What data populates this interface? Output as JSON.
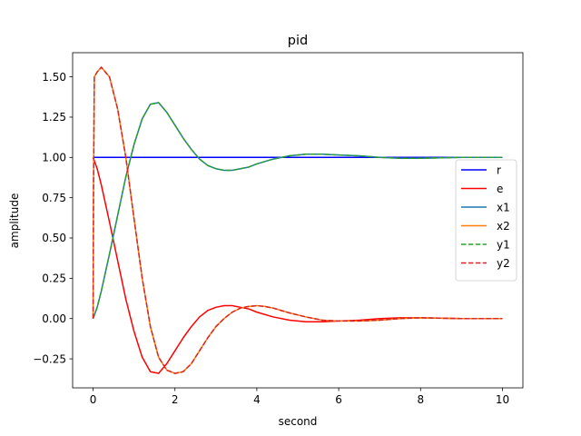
{
  "chart_data": {
    "type": "line",
    "title": "pid",
    "xlabel": "second",
    "ylabel": "amplitude",
    "xlim": [
      -0.5,
      10.5
    ],
    "ylim": [
      -0.43,
      1.65
    ],
    "xticks": [
      0,
      2,
      4,
      6,
      8,
      10
    ],
    "xtick_labels": [
      "0",
      "2",
      "4",
      "6",
      "8",
      "10"
    ],
    "yticks": [
      -0.25,
      0,
      0.25,
      0.5,
      0.75,
      1.0,
      1.25,
      1.5
    ],
    "ytick_labels": [
      "−0.25",
      "0.00",
      "0.25",
      "0.50",
      "0.75",
      "1.00",
      "1.25",
      "1.50"
    ],
    "grid": false,
    "legend_position": "center-right",
    "series": [
      {
        "name": "r",
        "color": "#0000ff",
        "style": "solid",
        "x": [
          0,
          0.5,
          1,
          2,
          3,
          4,
          5,
          6,
          7,
          8,
          9,
          10
        ],
        "y": [
          1,
          1,
          1,
          1,
          1,
          1,
          1,
          1,
          1,
          1,
          1,
          1
        ]
      },
      {
        "name": "e",
        "color": "#ff0000",
        "style": "solid",
        "x": [
          0,
          0.1,
          0.2,
          0.4,
          0.6,
          0.8,
          1.0,
          1.2,
          1.4,
          1.6,
          1.8,
          2.0,
          2.2,
          2.4,
          2.6,
          2.8,
          3.0,
          3.2,
          3.4,
          3.6,
          3.8,
          4.0,
          4.4,
          4.8,
          5.2,
          5.6,
          6.0,
          6.5,
          7.0,
          7.5,
          8.0,
          9.0,
          10.0
        ],
        "y": [
          1.0,
          0.93,
          0.83,
          0.6,
          0.36,
          0.12,
          -0.08,
          -0.24,
          -0.33,
          -0.34,
          -0.28,
          -0.2,
          -0.12,
          -0.05,
          0.01,
          0.05,
          0.07,
          0.08,
          0.08,
          0.07,
          0.06,
          0.04,
          0.01,
          -0.01,
          -0.02,
          -0.02,
          -0.015,
          -0.01,
          0.0,
          0.005,
          0.005,
          0.0,
          0.0
        ]
      },
      {
        "name": "x1",
        "color": "#1f77b4",
        "style": "solid",
        "x": [
          0,
          0.1,
          0.2,
          0.4,
          0.6,
          0.8,
          1.0,
          1.2,
          1.4,
          1.6,
          1.8,
          2.0,
          2.2,
          2.4,
          2.6,
          2.8,
          3.0,
          3.2,
          3.4,
          3.6,
          3.8,
          4.0,
          4.4,
          4.8,
          5.2,
          5.6,
          6.0,
          6.5,
          7.0,
          7.5,
          8.0,
          9.0,
          10.0
        ],
        "y": [
          0.0,
          0.07,
          0.17,
          0.4,
          0.64,
          0.88,
          1.08,
          1.24,
          1.33,
          1.34,
          1.28,
          1.2,
          1.12,
          1.05,
          0.99,
          0.95,
          0.93,
          0.92,
          0.92,
          0.93,
          0.94,
          0.96,
          0.99,
          1.01,
          1.02,
          1.02,
          1.015,
          1.01,
          1.0,
          0.995,
          0.995,
          1.0,
          1.0
        ]
      },
      {
        "name": "x2",
        "color": "#ff7f0e",
        "style": "solid",
        "x": [
          0,
          0.01,
          0.03,
          0.1,
          0.2,
          0.4,
          0.6,
          0.8,
          1.0,
          1.2,
          1.4,
          1.6,
          1.8,
          2.0,
          2.2,
          2.4,
          2.6,
          2.8,
          3.0,
          3.2,
          3.4,
          3.6,
          3.8,
          4.0,
          4.2,
          4.4,
          4.6,
          4.8,
          5.2,
          5.6,
          6.0,
          6.5,
          7.0,
          7.5,
          8.0,
          9.0,
          10.0
        ],
        "y": [
          0.0,
          0.8,
          1.5,
          1.53,
          1.56,
          1.5,
          1.3,
          1.0,
          0.62,
          0.25,
          -0.05,
          -0.24,
          -0.32,
          -0.34,
          -0.33,
          -0.28,
          -0.2,
          -0.12,
          -0.05,
          0.0,
          0.04,
          0.065,
          0.075,
          0.08,
          0.075,
          0.065,
          0.05,
          0.035,
          0.01,
          -0.01,
          -0.015,
          -0.015,
          -0.01,
          0.0,
          0.005,
          0.0,
          0.0
        ]
      },
      {
        "name": "y1",
        "color": "#2ca02c",
        "style": "dashed",
        "x": [
          0,
          0.1,
          0.2,
          0.4,
          0.6,
          0.8,
          1.0,
          1.2,
          1.4,
          1.6,
          1.8,
          2.0,
          2.2,
          2.4,
          2.6,
          2.8,
          3.0,
          3.2,
          3.4,
          3.6,
          3.8,
          4.0,
          4.4,
          4.8,
          5.2,
          5.6,
          6.0,
          6.5,
          7.0,
          7.5,
          8.0,
          9.0,
          10.0
        ],
        "y": [
          0.0,
          0.07,
          0.17,
          0.4,
          0.64,
          0.88,
          1.08,
          1.24,
          1.33,
          1.34,
          1.28,
          1.2,
          1.12,
          1.05,
          0.99,
          0.95,
          0.93,
          0.92,
          0.92,
          0.93,
          0.94,
          0.96,
          0.99,
          1.01,
          1.02,
          1.02,
          1.015,
          1.01,
          1.0,
          0.995,
          0.995,
          1.0,
          1.0
        ]
      },
      {
        "name": "y2",
        "color": "#d62728",
        "style": "dashed",
        "x": [
          0,
          0.01,
          0.03,
          0.1,
          0.2,
          0.4,
          0.6,
          0.8,
          1.0,
          1.2,
          1.4,
          1.6,
          1.8,
          2.0,
          2.2,
          2.4,
          2.6,
          2.8,
          3.0,
          3.2,
          3.4,
          3.6,
          3.8,
          4.0,
          4.2,
          4.4,
          4.6,
          4.8,
          5.2,
          5.6,
          6.0,
          6.5,
          7.0,
          7.5,
          8.0,
          9.0,
          10.0
        ],
        "y": [
          0.0,
          0.8,
          1.5,
          1.53,
          1.56,
          1.5,
          1.3,
          1.0,
          0.62,
          0.25,
          -0.05,
          -0.24,
          -0.32,
          -0.34,
          -0.33,
          -0.28,
          -0.2,
          -0.12,
          -0.05,
          0.0,
          0.04,
          0.065,
          0.075,
          0.08,
          0.075,
          0.065,
          0.05,
          0.035,
          0.01,
          -0.01,
          -0.015,
          -0.015,
          -0.01,
          0.0,
          0.005,
          0.0,
          0.0
        ]
      }
    ]
  }
}
